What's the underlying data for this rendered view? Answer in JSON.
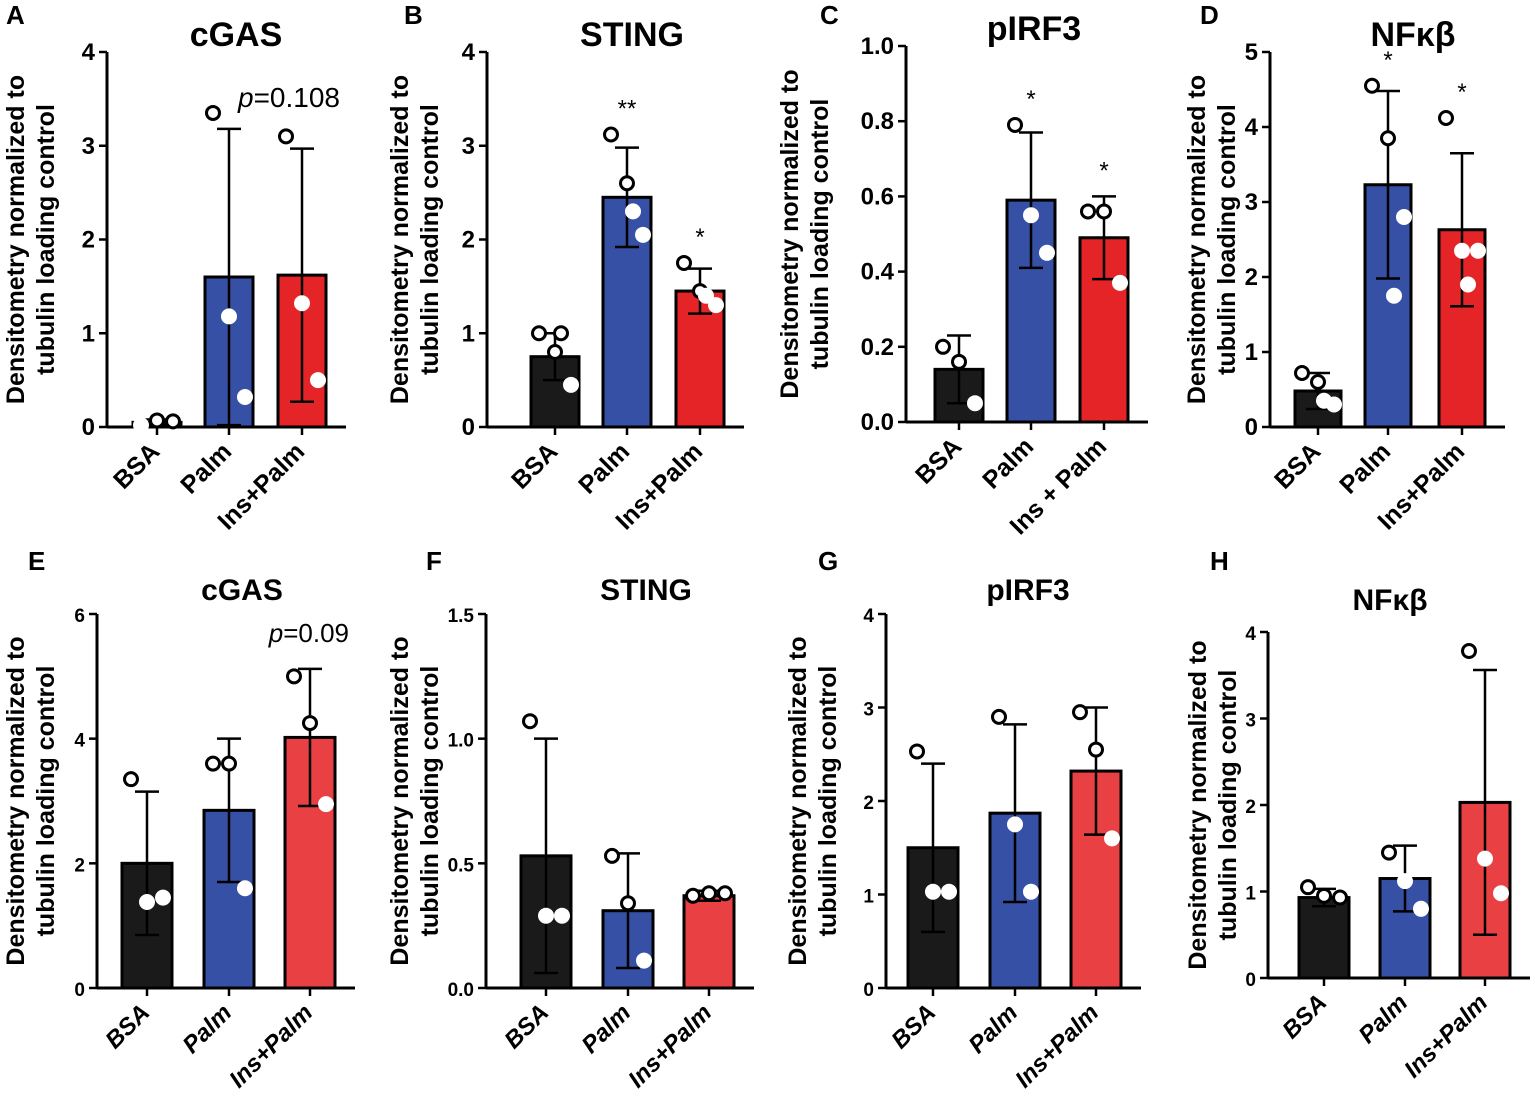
{
  "chart_data": [
    {
      "type": "bar",
      "panel": "A",
      "title": "cGAS",
      "categories": [
        "BSA",
        "Palm",
        "Ins+Palm"
      ],
      "values": [
        0.05,
        1.6,
        1.62
      ],
      "err": [
        0.03,
        1.58,
        1.35
      ],
      "points": [
        [
          0.02,
          0.07,
          0.06
        ],
        [
          3.35,
          1.18,
          0.32
        ],
        [
          3.1,
          1.32,
          0.5
        ]
      ],
      "colors": [
        "#1a1a1a",
        "#3650a6",
        "#e52427"
      ],
      "ylabel": "Densitometry normalized to tubulin loading control",
      "ylim": [
        0,
        4
      ],
      "yticks": [
        "0",
        "1",
        "2",
        "3",
        "4"
      ],
      "annotation": {
        "italic": "p",
        "text": "=0.108"
      },
      "stars": [
        "",
        "",
        ""
      ]
    },
    {
      "type": "bar",
      "panel": "B",
      "title": "STING",
      "categories": [
        "BSA",
        "Palm",
        "Ins+Palm"
      ],
      "values": [
        0.75,
        2.45,
        1.45
      ],
      "err": [
        0.25,
        0.53,
        0.24
      ],
      "points": [
        [
          1.0,
          0.8,
          0.45,
          1.0
        ],
        [
          3.12,
          2.6,
          2.05,
          2.3
        ],
        [
          1.75,
          1.45,
          1.3,
          1.4
        ]
      ],
      "colors": [
        "#1a1a1a",
        "#3650a6",
        "#e52427"
      ],
      "ylabel": "Densitometry normalized to tubulin loading control",
      "ylim": [
        0,
        4
      ],
      "yticks": [
        "0",
        "1",
        "2",
        "3",
        "4"
      ],
      "stars": [
        "",
        "**",
        "*"
      ]
    },
    {
      "type": "bar",
      "panel": "C",
      "title": "pIRF3",
      "categories": [
        "BSA",
        "Palm",
        "Ins + Palm"
      ],
      "values": [
        0.14,
        0.59,
        0.49
      ],
      "err": [
        0.09,
        0.18,
        0.11
      ],
      "points": [
        [
          0.2,
          0.16,
          0.05
        ],
        [
          0.79,
          0.55,
          0.45
        ],
        [
          0.56,
          0.56,
          0.37
        ]
      ],
      "colors": [
        "#1a1a1a",
        "#3650a6",
        "#e52427"
      ],
      "ylabel": "Densitometry normalized to tubulin loading control",
      "ylim": [
        0,
        1.0
      ],
      "yticks": [
        "0.0",
        "0.2",
        "0.4",
        "0.6",
        "0.8",
        "1.0"
      ],
      "stars": [
        "",
        "*",
        "*"
      ]
    },
    {
      "type": "bar",
      "panel": "D",
      "title": "NFκβ",
      "categories": [
        "BSA",
        "Palm",
        "Ins+Palm"
      ],
      "values": [
        0.48,
        3.23,
        2.63
      ],
      "err": [
        0.24,
        1.25,
        1.02
      ],
      "points": [
        [
          0.72,
          0.6,
          0.3,
          0.35
        ],
        [
          4.55,
          3.85,
          2.8,
          1.75
        ],
        [
          4.12,
          2.35,
          2.35,
          1.9
        ]
      ],
      "colors": [
        "#1a1a1a",
        "#3650a6",
        "#e52427"
      ],
      "ylabel": "Densitometry normalized to tubulin loading control",
      "ylim": [
        0,
        5
      ],
      "yticks": [
        "0",
        "1",
        "2",
        "3",
        "4",
        "5"
      ],
      "stars": [
        "",
        "*",
        "*"
      ]
    },
    {
      "type": "bar",
      "panel": "E",
      "title": "cGAS",
      "categories": [
        "BSA",
        "Palm",
        "Ins+Palm"
      ],
      "values": [
        2.0,
        2.85,
        4.02
      ],
      "err": [
        1.15,
        1.15,
        1.1
      ],
      "points": [
        [
          3.35,
          1.38,
          1.45
        ],
        [
          3.6,
          3.6,
          1.6
        ],
        [
          5.0,
          4.25,
          2.95
        ]
      ],
      "colors": [
        "#1a1a1a",
        "#3650a6",
        "#e94043"
      ],
      "ylabel": "Densitometry normalized to tubulin loading control",
      "ylim": [
        0,
        6
      ],
      "yticks": [
        "0",
        "2",
        "4",
        "6"
      ],
      "annotation": {
        "italic": "p",
        "text": "=0.09"
      },
      "stars": [
        "",
        "",
        ""
      ]
    },
    {
      "type": "bar",
      "panel": "F",
      "title": "STING",
      "categories": [
        "BSA",
        "Palm",
        "Ins+Palm"
      ],
      "values": [
        0.53,
        0.31,
        0.37
      ],
      "err": [
        0.47,
        0.23,
        0.02
      ],
      "points": [
        [
          1.07,
          0.29,
          0.29
        ],
        [
          0.53,
          0.34,
          0.11
        ],
        [
          0.37,
          0.38,
          0.38
        ]
      ],
      "colors": [
        "#1a1a1a",
        "#3650a6",
        "#e94043"
      ],
      "ylabel": "Densitometry normalized to tubulin loading control",
      "ylim": [
        0,
        1.5
      ],
      "yticks": [
        "0.0",
        "0.5",
        "1.0",
        "1.5"
      ],
      "stars": [
        "",
        "",
        ""
      ]
    },
    {
      "type": "bar",
      "panel": "G",
      "title": "pIRF3",
      "categories": [
        "BSA",
        "Palm",
        "Ins+Palm"
      ],
      "values": [
        1.5,
        1.87,
        2.32
      ],
      "err": [
        0.9,
        0.95,
        0.68
      ],
      "points": [
        [
          2.53,
          1.03,
          1.03
        ],
        [
          2.9,
          1.75,
          1.03
        ],
        [
          2.95,
          2.55,
          1.6
        ]
      ],
      "colors": [
        "#1a1a1a",
        "#3650a6",
        "#e94043"
      ],
      "ylabel": "Densitometry normalized to tubulin loading control",
      "ylim": [
        0,
        4
      ],
      "yticks": [
        "0",
        "1",
        "2",
        "3",
        "4"
      ],
      "stars": [
        "",
        "",
        ""
      ]
    },
    {
      "type": "bar",
      "panel": "H",
      "title": "NFκβ",
      "categories": [
        "BSA",
        "Palm",
        "Ins+Palm"
      ],
      "values": [
        0.93,
        1.15,
        2.03
      ],
      "err": [
        0.1,
        0.38,
        1.53
      ],
      "points": [
        [
          1.05,
          0.95,
          0.93
        ],
        [
          1.45,
          1.12,
          0.8
        ],
        [
          3.78,
          1.38,
          0.98
        ]
      ],
      "colors": [
        "#1a1a1a",
        "#3650a6",
        "#e94043"
      ],
      "ylabel": "Densitometry normalized to tubulin loading control",
      "ylim": [
        0,
        4
      ],
      "yticks": [
        "0",
        "1",
        "2",
        "3",
        "4"
      ],
      "stars": [
        "",
        "",
        ""
      ]
    }
  ]
}
